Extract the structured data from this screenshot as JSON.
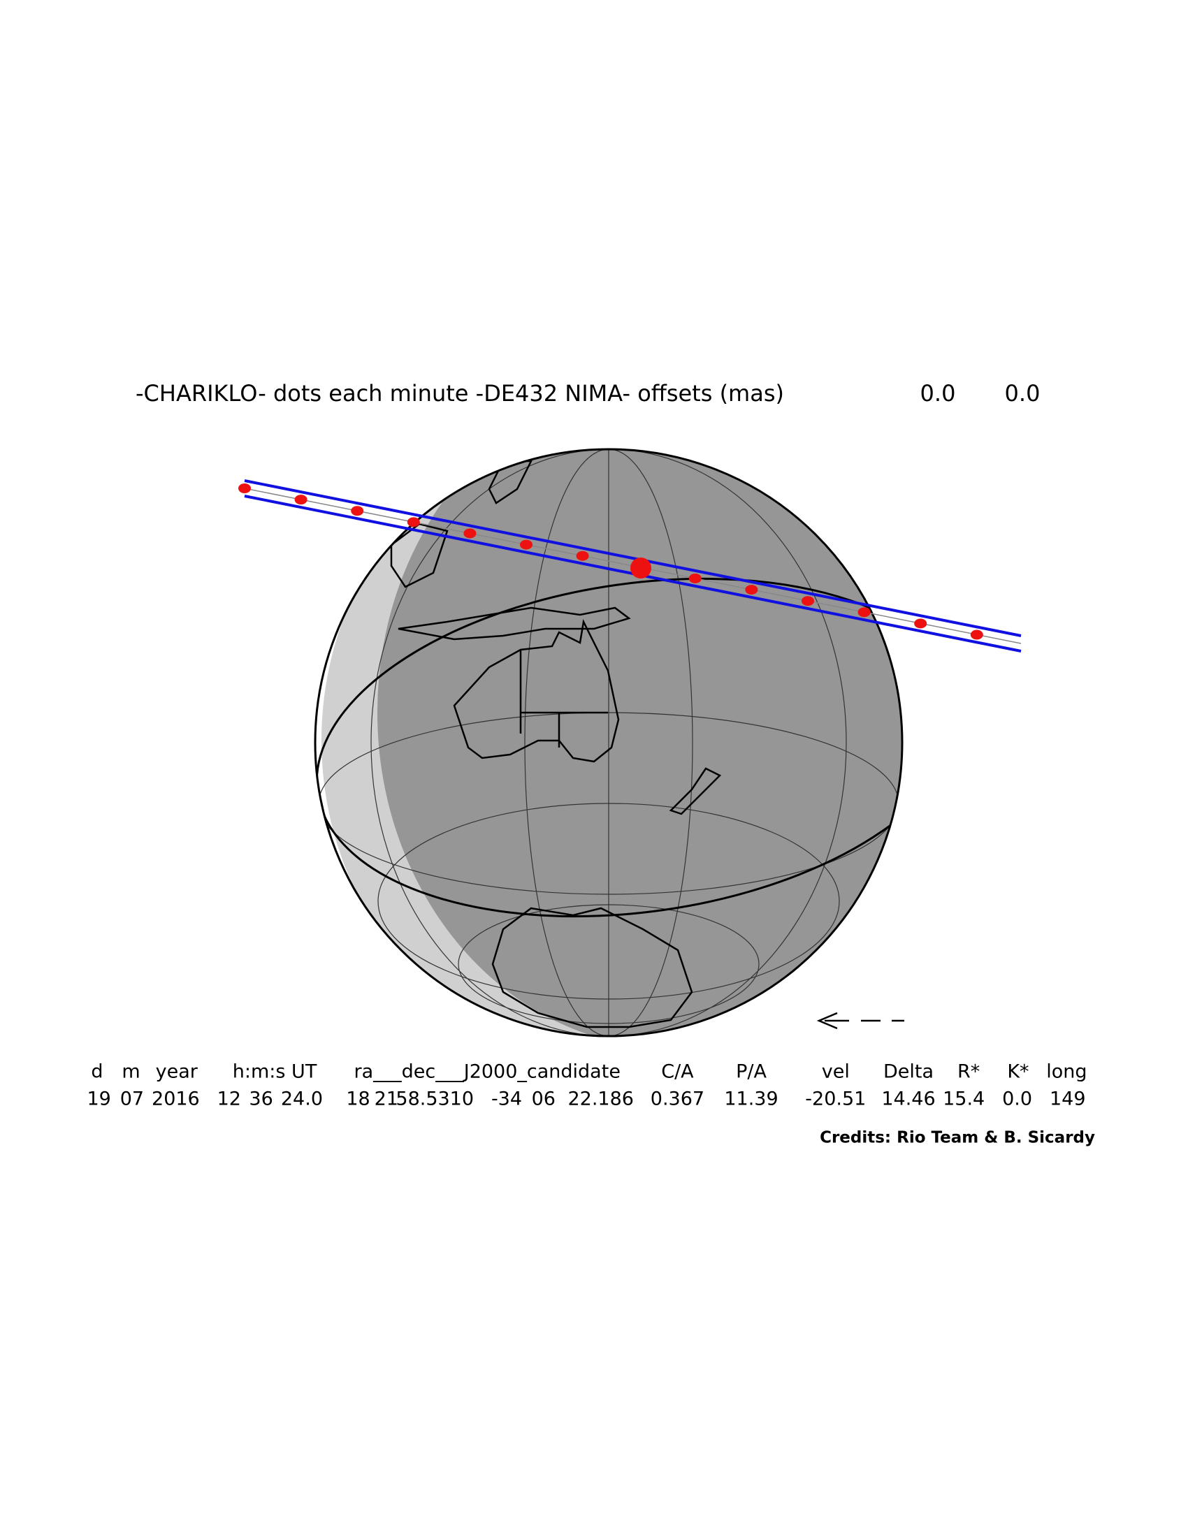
{
  "header": {
    "title": "-CHARIKLO- dots each minute -DE432 NIMA- offsets (mas)",
    "offsets": [
      "0.0",
      "0.0"
    ]
  },
  "table": {
    "headers": [
      "d",
      "m",
      "year",
      "h:m:s UT",
      "ra___dec___J2000_candidate",
      "C/A",
      "P/A",
      "vel",
      "Delta",
      "R*",
      "K*",
      "long"
    ],
    "values": [
      "19",
      "07",
      "2016",
      "12",
      "36",
      "24.0",
      "18",
      "21",
      "58.5310",
      "-34",
      "06",
      "22.186",
      "0.367",
      "11.39",
      "-20.51",
      "14.46",
      "15.4",
      "0.0",
      "149"
    ]
  },
  "credits": "Credits: Rio Team & B. Sicardy"
}
